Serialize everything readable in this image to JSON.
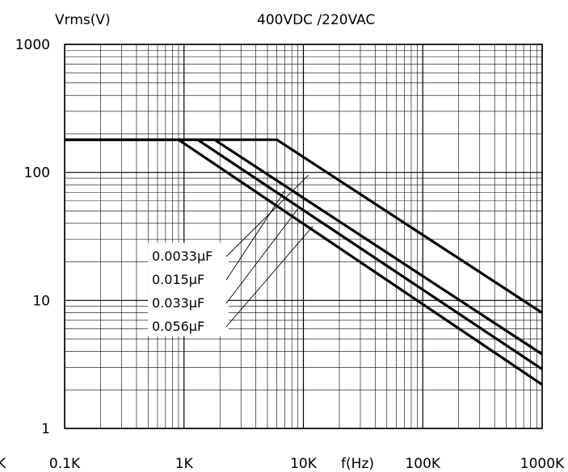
{
  "chart_data": {
    "type": "line",
    "title": "400VDC /220VAC",
    "xlabel": "f(Hz)",
    "ylabel": "Vrms(V)",
    "x_scale": "log",
    "y_scale": "log",
    "xlim": [
      100,
      1000000
    ],
    "ylim": [
      1,
      1000
    ],
    "grid": true,
    "x_ticks": [
      "0.1K",
      "1K",
      "10K",
      "100K",
      "1000K"
    ],
    "y_ticks": [
      "1",
      "10",
      "100",
      "1000"
    ],
    "series": [
      {
        "name": "0.0033μF",
        "points": [
          [
            100,
            180
          ],
          [
            6000,
            180
          ],
          [
            1000000,
            8
          ]
        ]
      },
      {
        "name": "0.015μF",
        "points": [
          [
            100,
            180
          ],
          [
            1800,
            180
          ],
          [
            1000000,
            3.8
          ]
        ]
      },
      {
        "name": "0.033μF",
        "points": [
          [
            100,
            180
          ],
          [
            1300,
            180
          ],
          [
            1000000,
            2.9
          ]
        ]
      },
      {
        "name": "0.056μF",
        "points": [
          [
            100,
            180
          ],
          [
            900,
            180
          ],
          [
            1000000,
            2.2
          ]
        ]
      }
    ],
    "legend_position": "center-left"
  },
  "partial_left_label": "K"
}
